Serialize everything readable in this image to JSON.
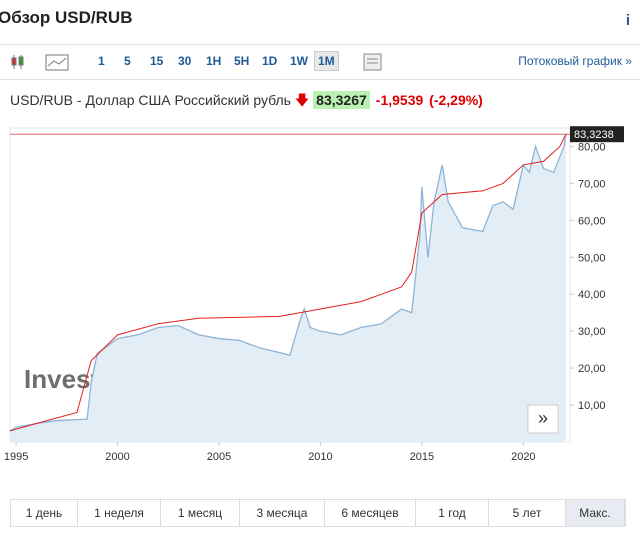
{
  "header": {
    "title": "Обзор USD/RUB",
    "info": "i"
  },
  "toolbar": {
    "intervals": [
      "1",
      "5",
      "15",
      "30",
      "1H",
      "5H",
      "1D",
      "1W",
      "1M"
    ],
    "active": 8,
    "streaming": "Потоковый график »"
  },
  "quote": {
    "name": "USD/RUB - Доллар США Российский рубль",
    "price": "83,3267",
    "change": "-1,9539",
    "change_pct": "(-2,29%)"
  },
  "chart_data": {
    "type": "area",
    "xlim": [
      1994.7,
      2022.3
    ],
    "ylim": [
      0,
      85
    ],
    "xticks": [
      {
        "value": 1995,
        "label": "1995"
      },
      2000,
      2005,
      2010,
      2015,
      2020
    ],
    "yticks": [
      {
        "value": 10,
        "label": "10,00"
      },
      {
        "value": 20,
        "label": "20,00"
      },
      {
        "value": 30,
        "label": "30,00"
      },
      {
        "value": 40,
        "label": "40,00"
      },
      {
        "value": 50,
        "label": "50,00"
      },
      {
        "value": 60,
        "label": "60,00"
      },
      {
        "value": 70,
        "label": "70,00"
      },
      {
        "value": 80,
        "label": "80,00"
      }
    ],
    "last": {
      "value": 83.3238,
      "label": "83,3238"
    },
    "watermark": "Investing.com",
    "series": [
      {
        "color": "#8db4d6",
        "x": [
          1994.7,
          1995,
          1996,
          1997,
          1998.5,
          1998.7,
          1999,
          2000,
          2001,
          2002,
          2003,
          2004,
          2005,
          2006,
          2007,
          2008.5,
          2009,
          2009.2,
          2009.5,
          2010,
          2011,
          2012,
          2013,
          2014,
          2014.5,
          2014.9,
          2015,
          2015.3,
          2015.6,
          2016,
          2016.3,
          2017,
          2018,
          2018.5,
          2019,
          2019.5,
          2020,
          2020.3,
          2020.6,
          2021,
          2021.5,
          2022,
          2022.1
        ],
        "values": [
          3,
          4,
          5,
          5.8,
          6.2,
          16,
          24,
          28,
          29,
          31,
          31.5,
          29,
          28,
          27.5,
          25.5,
          23.5,
          33,
          36,
          31,
          30,
          29,
          31,
          32,
          36,
          35,
          56,
          69,
          50,
          65,
          75,
          65,
          58,
          57,
          64,
          65,
          63,
          75,
          73,
          80,
          74,
          73,
          80,
          83.3
        ]
      },
      {
        "color": "#e02020",
        "x": [
          1994.7,
          1996,
          1998,
          1998.7,
          2000,
          2002,
          2004,
          2008,
          2010,
          2012,
          2014,
          2014.5,
          2015,
          2016,
          2018,
          2019,
          2020,
          2021,
          2021.8,
          2022.1
        ],
        "values": [
          3,
          5,
          8,
          22,
          29,
          32,
          33.5,
          34,
          36,
          38,
          42,
          46,
          62,
          67,
          68,
          70,
          75,
          76,
          80,
          83.3
        ]
      }
    ]
  },
  "ranges": {
    "items": [
      "1 день",
      "1 неделя",
      "1 месяц",
      "3 месяца",
      "6 месяцев",
      "1 год",
      "5 лет",
      "Макс."
    ],
    "active": 7
  }
}
